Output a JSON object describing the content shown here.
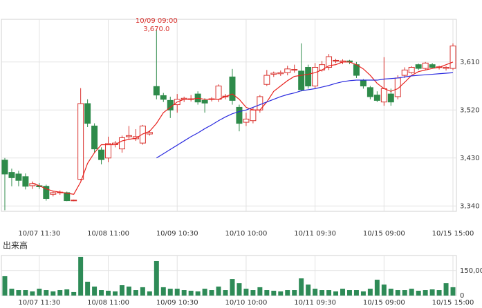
{
  "chart_data": [
    {
      "type": "candlestick",
      "categories": [
        null,
        null,
        null,
        null,
        null,
        "10/07 11:30",
        null,
        null,
        null,
        null,
        null,
        null,
        null,
        null,
        null,
        "10/08 11:00",
        null,
        null,
        null,
        null,
        null,
        null,
        null,
        null,
        null,
        "10/09 10:30",
        null,
        null,
        null,
        null,
        null,
        null,
        null,
        null,
        null,
        "10/10 10:00",
        null,
        null,
        null,
        null,
        null,
        null,
        null,
        null,
        null,
        "10/11 09:30",
        null,
        null,
        null,
        null,
        null,
        null,
        null,
        null,
        null,
        "10/15 09:00",
        null,
        null,
        null,
        null,
        null,
        null,
        null,
        null,
        null,
        "10/15 15:00"
      ],
      "ohlc": [
        [
          3426,
          3430,
          3332,
          3400
        ],
        [
          3403,
          3410,
          3377,
          3393
        ],
        [
          3400,
          3406,
          3377,
          3388
        ],
        [
          3395,
          3401,
          3371,
          3377
        ],
        [
          3378,
          3386,
          3372,
          3382
        ],
        [
          3378,
          3383,
          3372,
          3376
        ],
        [
          3377,
          3380,
          3350,
          3354
        ],
        [
          3362,
          3368,
          3358,
          3365
        ],
        [
          3365,
          3369,
          3361,
          3366
        ],
        [
          3365,
          3367,
          3349,
          3350
        ],
        [
          3350,
          3352,
          3349,
          3351
        ],
        [
          3390,
          3561,
          3388,
          3532
        ],
        [
          3532,
          3540,
          3488,
          3495
        ],
        [
          3490,
          3495,
          3440,
          3447
        ],
        [
          3445,
          3450,
          3418,
          3427
        ],
        [
          3430,
          3470,
          3422,
          3457
        ],
        [
          3455,
          3462,
          3450,
          3458
        ],
        [
          3447,
          3472,
          3440,
          3468
        ],
        [
          3470,
          3490,
          3465,
          3472
        ],
        [
          3466,
          3484,
          3462,
          3470
        ],
        [
          3458,
          3492,
          3455,
          3490
        ],
        [
          3475,
          3482,
          3472,
          3478
        ],
        [
          3564,
          3670,
          3540,
          3548
        ],
        [
          3547,
          3552,
          3535,
          3540
        ],
        [
          3538,
          3545,
          3505,
          3520
        ],
        [
          3530,
          3550,
          3515,
          3540
        ],
        [
          3540,
          3545,
          3535,
          3542
        ],
        [
          3540,
          3548,
          3536,
          3541
        ],
        [
          3550,
          3555,
          3530,
          3535
        ],
        [
          3538,
          3542,
          3515,
          3533
        ],
        [
          3540,
          3544,
          3536,
          3541
        ],
        [
          3540,
          3568,
          3535,
          3565
        ],
        [
          3545,
          3550,
          3540,
          3546
        ],
        [
          3582,
          3597,
          3530,
          3538
        ],
        [
          3525,
          3530,
          3480,
          3495
        ],
        [
          3497,
          3515,
          3490,
          3503
        ],
        [
          3500,
          3525,
          3495,
          3520
        ],
        [
          3520,
          3548,
          3515,
          3545
        ],
        [
          3568,
          3595,
          3565,
          3585
        ],
        [
          3587,
          3592,
          3582,
          3589
        ],
        [
          3588,
          3594,
          3584,
          3590
        ],
        [
          3590,
          3603,
          3585,
          3597
        ],
        [
          3595,
          3605,
          3590,
          3596
        ],
        [
          3593,
          3645,
          3555,
          3558
        ],
        [
          3600,
          3605,
          3560,
          3565
        ],
        [
          3565,
          3608,
          3560,
          3600
        ],
        [
          3595,
          3612,
          3592,
          3605
        ],
        [
          3600,
          3625,
          3595,
          3620
        ],
        [
          3612,
          3616,
          3608,
          3613
        ],
        [
          3610,
          3615,
          3606,
          3612
        ],
        [
          3612,
          3614,
          3606,
          3610
        ],
        [
          3605,
          3610,
          3580,
          3585
        ],
        [
          3575,
          3578,
          3560,
          3565
        ],
        [
          3562,
          3565,
          3540,
          3545
        ],
        [
          3548,
          3555,
          3535,
          3538
        ],
        [
          3535,
          3619,
          3528,
          3560
        ],
        [
          3550,
          3560,
          3528,
          3535
        ],
        [
          3545,
          3585,
          3540,
          3580
        ],
        [
          3585,
          3600,
          3580,
          3595
        ],
        [
          3590,
          3602,
          3588,
          3600
        ],
        [
          3605,
          3607,
          3595,
          3598
        ],
        [
          3598,
          3610,
          3595,
          3608
        ],
        [
          3605,
          3608,
          3598,
          3600
        ],
        [
          3600,
          3603,
          3596,
          3601
        ],
        [
          3598,
          3602,
          3594,
          3600
        ],
        [
          3598,
          3645,
          3595,
          3640
        ]
      ],
      "up_color": "#d9302c",
      "down_color": "#2e8b4a",
      "lines": [
        {
          "color": "#e8231f",
          "values": [
            null,
            null,
            null,
            null,
            3383,
            3378,
            3372,
            3368,
            3366,
            3364,
            3362,
            3385,
            3420,
            3440,
            3455,
            3455,
            3455,
            3462,
            3465,
            3467,
            3475,
            3480,
            3495,
            3515,
            3525,
            3535,
            3540,
            3540,
            3542,
            3540,
            3540,
            3540,
            3545,
            3550,
            3540,
            3525,
            3520,
            3520,
            3535,
            3555,
            3565,
            3575,
            3583,
            3585,
            3587,
            3590,
            3595,
            3603,
            3605,
            3610,
            3610,
            3605,
            3597,
            3585,
            3570,
            3560,
            3555,
            3560,
            3572,
            3585,
            3592,
            3595,
            3598,
            3600,
            3605,
            3610
          ]
        },
        {
          "color": "#2a2adf",
          "values": [
            null,
            null,
            null,
            null,
            null,
            null,
            null,
            null,
            null,
            null,
            null,
            null,
            null,
            null,
            null,
            null,
            null,
            null,
            null,
            null,
            null,
            null,
            3430,
            3438,
            3446,
            3454,
            3462,
            3470,
            3477,
            3485,
            3492,
            3500,
            3507,
            3513,
            3517,
            3520,
            3525,
            3530,
            3535,
            3540,
            3545,
            3549,
            3552,
            3556,
            3558,
            3560,
            3563,
            3566,
            3570,
            3573,
            3575,
            3576,
            3576,
            3576,
            3576,
            3578,
            3579,
            3580,
            3582,
            3584,
            3585,
            3586,
            3587,
            3588,
            3589,
            3590
          ]
        }
      ],
      "ylim": [
        3330,
        3690
      ],
      "yticks": [
        {
          "value": 3340,
          "label": "3,340"
        },
        {
          "value": 3430,
          "label": "3,430"
        },
        {
          "value": 3520,
          "label": "3,520"
        },
        {
          "value": 3610,
          "label": "3,610"
        }
      ],
      "annotation": {
        "time": "10/09 09:00",
        "value": 3670,
        "label": "3,670.0"
      },
      "grid": true
    },
    {
      "type": "bar",
      "title": "出来高",
      "categories": [
        null,
        null,
        null,
        null,
        null,
        "10/07 11:30",
        null,
        null,
        null,
        null,
        null,
        null,
        null,
        null,
        null,
        "10/08 11:00",
        null,
        null,
        null,
        null,
        null,
        null,
        null,
        null,
        null,
        "10/09 10:30",
        null,
        null,
        null,
        null,
        null,
        null,
        null,
        null,
        null,
        "10/10 10:00",
        null,
        null,
        null,
        null,
        null,
        null,
        null,
        null,
        null,
        "10/11 09:30",
        null,
        null,
        null,
        null,
        null,
        null,
        null,
        null,
        null,
        "10/15 09:00",
        null,
        null,
        null,
        null,
        null,
        null,
        null,
        null,
        null,
        "10/15 15:00"
      ],
      "values": [
        116000,
        41000,
        33000,
        33000,
        25000,
        41000,
        33000,
        25000,
        33000,
        37000,
        21000,
        232000,
        83000,
        54000,
        33000,
        29000,
        25000,
        62000,
        54000,
        33000,
        50000,
        25000,
        207000,
        50000,
        41000,
        41000,
        33000,
        29000,
        25000,
        41000,
        33000,
        54000,
        33000,
        99000,
        74000,
        41000,
        33000,
        50000,
        33000,
        29000,
        25000,
        33000,
        33000,
        103000,
        66000,
        41000,
        33000,
        33000,
        25000,
        41000,
        33000,
        33000,
        25000,
        41000,
        95000,
        66000,
        41000,
        33000,
        33000,
        41000,
        29000,
        33000,
        37000,
        33000,
        74000,
        50000
      ],
      "color": "#2e8b57",
      "ylim": [
        0,
        240000
      ],
      "yticks": [
        0,
        {
          "value": 150000,
          "label": "150,000"
        }
      ],
      "grid": true
    }
  ]
}
